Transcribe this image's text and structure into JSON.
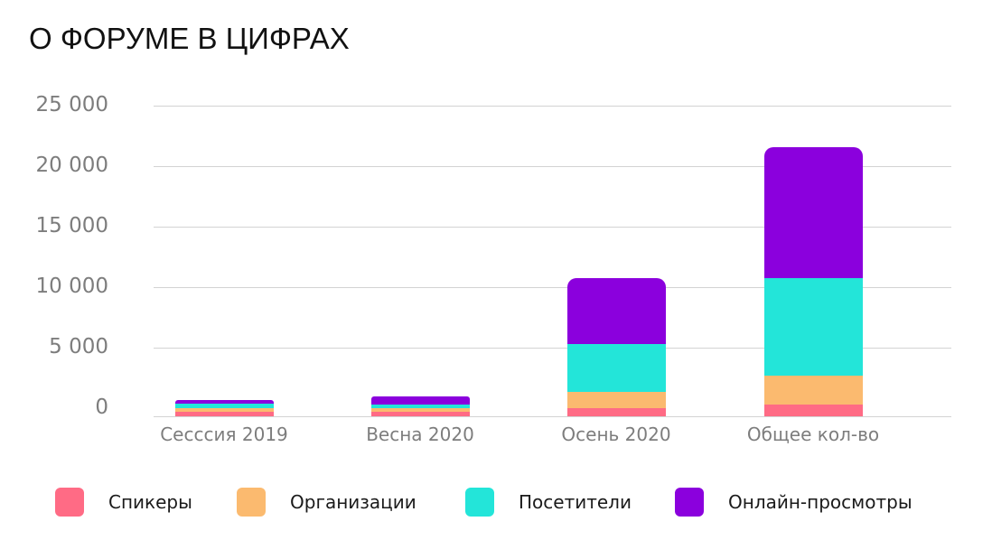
{
  "title": "О ФОРУМЕ В ЦИФРАХ",
  "colors": {
    "speakers": "#FF6B85",
    "organizations": "#FBBA6F",
    "visitors": "#23E5D9",
    "online_views": "#8B00DD",
    "gridline": "#D3D3D3",
    "axis_text": "#7D7D7D"
  },
  "yaxis": {
    "ticks": [
      "25 000",
      "20 000",
      "15 000",
      "10 000",
      "5 000",
      "0"
    ]
  },
  "xaxis": {
    "ticks": [
      "Сесссия 2019",
      "Весна 2020",
      "Осень 2020",
      "Общее кол-во"
    ]
  },
  "legend": [
    {
      "label": "Спикеры",
      "color": "#FF6B85"
    },
    {
      "label": "Организации",
      "color": "#FBBA6F"
    },
    {
      "label": "Посетители",
      "color": "#23E5D9"
    },
    {
      "label": "Онлайн-просмотры",
      "color": "#8B00DD"
    }
  ],
  "chart_data": {
    "type": "bar",
    "stacked": true,
    "title": "О ФОРУМЕ В ЦИФРАХ",
    "xlabel": "",
    "ylabel": "",
    "ylim": [
      0,
      25000
    ],
    "yticks": [
      0,
      5000,
      10000,
      15000,
      20000,
      25000
    ],
    "grid": true,
    "legend_position": "bottom",
    "categories": [
      "Сесссия 2019",
      "Весна 2020",
      "Осень 2020",
      "Общее кол-во"
    ],
    "series": [
      {
        "name": "Спикеры",
        "color": "#FF6B85",
        "values": [
          350,
          350,
          650,
          950
        ]
      },
      {
        "name": "Организации",
        "color": "#FBBA6F",
        "values": [
          350,
          350,
          1350,
          2400
        ]
      },
      {
        "name": "Посетители",
        "color": "#23E5D9",
        "values": [
          350,
          300,
          4000,
          8100
        ]
      },
      {
        "name": "Онлайн-просмотры",
        "color": "#8B00DD",
        "values": [
          300,
          650,
          5450,
          10800
        ]
      }
    ]
  }
}
